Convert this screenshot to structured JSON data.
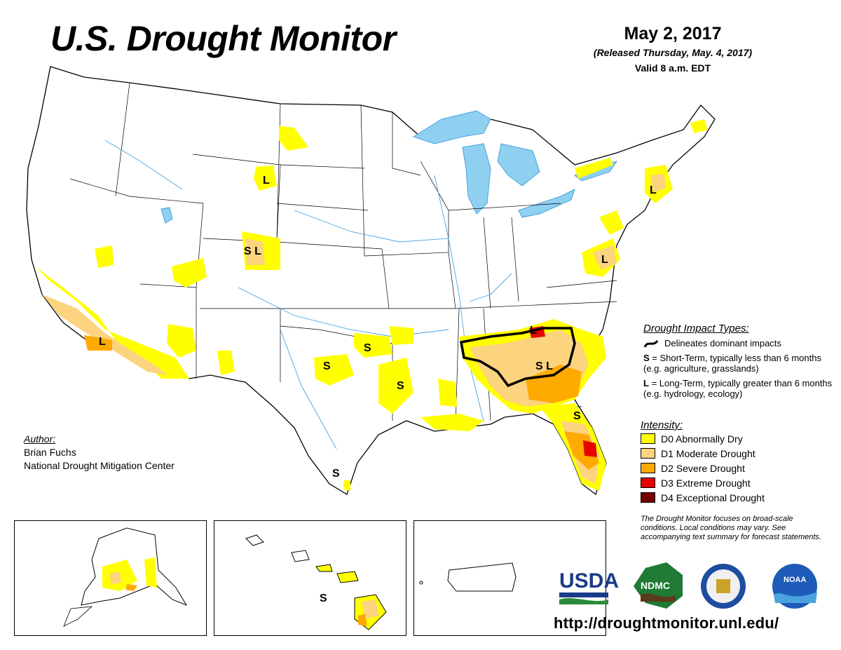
{
  "header": {
    "title": "U.S. Drought Monitor",
    "date": "May 2, 2017",
    "released": "(Released Thursday, May. 4, 2017)",
    "valid": "Valid 8 a.m. EDT"
  },
  "author": {
    "heading": "Author:",
    "name": "Brian Fuchs",
    "organization": "National Drought Mitigation Center"
  },
  "impact_types": {
    "heading": "Drought Impact Types:",
    "delineates": "Delineates dominant impacts",
    "short_term_letter": "S",
    "short_term_text": " = Short-Term, typically less than 6 months (e.g. agriculture, grasslands)",
    "long_term_letter": "L",
    "long_term_text": " = Long-Term, typically greater than 6 months (e.g. hydrology, ecology)"
  },
  "intensity": {
    "heading": "Intensity:",
    "levels": [
      {
        "label": "D0 Abnormally Dry",
        "color": "#ffff00"
      },
      {
        "label": "D1 Moderate Drought",
        "color": "#fcd37f"
      },
      {
        "label": "D2 Severe Drought",
        "color": "#ffaa00"
      },
      {
        "label": "D3 Extreme Drought",
        "color": "#e60000"
      },
      {
        "label": "D4 Exceptional Drought",
        "color": "#730000"
      }
    ]
  },
  "disclaimer": "The Drought Monitor focuses on broad-scale conditions. Local conditions may vary. See accompanying text summary for forecast statements.",
  "map_labels": {
    "wy": "L",
    "co": "S L",
    "ca": "L",
    "az_s": "S",
    "ok": "S",
    "tx": "S",
    "la_s": "S",
    "tx_south": "S",
    "nc": "L",
    "ga": "S L",
    "fl": "S",
    "va": "L",
    "ct": "L",
    "hi": "S"
  },
  "logos": {
    "usda": "USDA",
    "ndmc": "NDMC",
    "noaa": "NOAA"
  },
  "url": "http://droughtmonitor.unl.edu/",
  "colors": {
    "water": "#8fd0f0",
    "river": "#4aa3df",
    "border": "#000000"
  }
}
